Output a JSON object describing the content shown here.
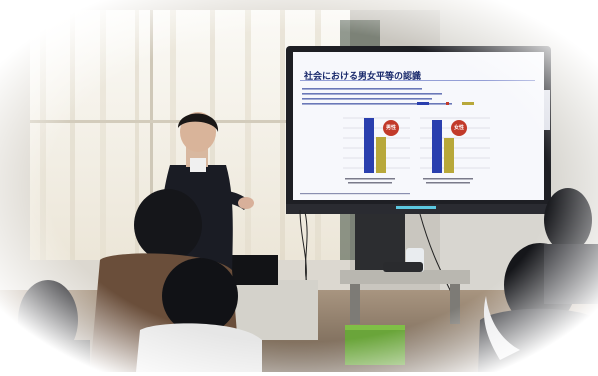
{
  "photo": {
    "description_free": true,
    "palette": {
      "window_light": "#f4f1ea",
      "curtain": "#e9e3d6",
      "wall": "#d9d6cf",
      "monitor_frame": "#1e1f24",
      "slide_bg": "#f7f8fc",
      "bar_blue": "#2a3fae",
      "bar_olive": "#b8a83a",
      "badge_red": "#c23a2a",
      "uniform": "#1a1c24",
      "floor": "#8a7a68"
    },
    "slide": {
      "title": "社会における男女平等の認識",
      "badge_left": "男性",
      "badge_right": "女性",
      "bar_left_blue": 0.92,
      "bar_left_olive": 0.58,
      "bar_right_blue": 0.88,
      "bar_right_olive": 0.55
    }
  }
}
